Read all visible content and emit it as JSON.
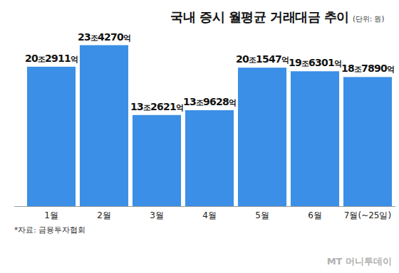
{
  "chart_data": {
    "type": "bar",
    "title": "국내 증시 월평균 거래대금 추이",
    "subtitle": "(단위: 원)",
    "categories": [
      "1월",
      "2월",
      "3월",
      "4월",
      "5월",
      "6월",
      "7월(~25일)"
    ],
    "values": [
      202911,
      234270,
      132621,
      139628,
      201547,
      196301,
      187890
    ],
    "value_labels": [
      "20조2911억",
      "23조4270억",
      "13조2621억",
      "13조9628억",
      "20조1547억",
      "19조6301억",
      "18조7890억"
    ],
    "color": "#3b8fe6",
    "ylim": [
      0,
      240000
    ],
    "grid": false,
    "data_labels": true,
    "tick_labels": "x",
    "source": "*자료: 금융투자협회",
    "watermark": "MT 머니투데이"
  }
}
